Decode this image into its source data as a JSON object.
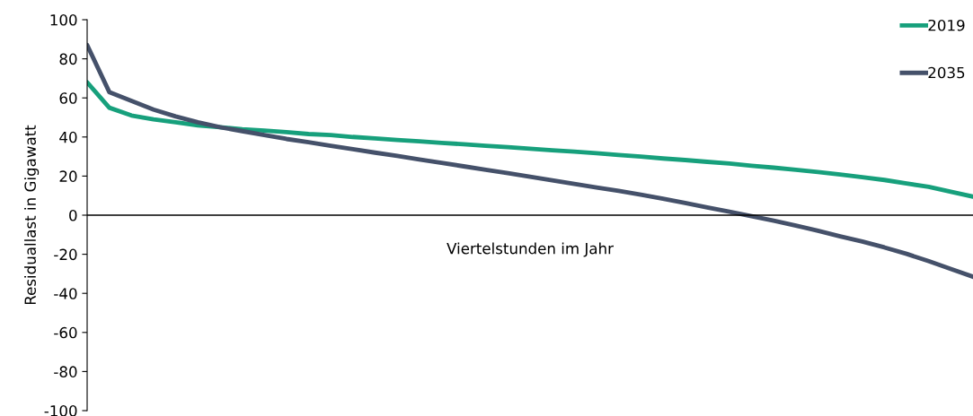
{
  "chart_data": {
    "type": "line",
    "xlabel": "Viertelstunden im Jahr",
    "ylabel": "Residuallast in Gigawatt",
    "categories": [
      null,
      null,
      null,
      null,
      null,
      null,
      null,
      null,
      null,
      null,
      null,
      null,
      null,
      null,
      null,
      null,
      null,
      null,
      null,
      null,
      null,
      null,
      null,
      null,
      null,
      null,
      null,
      null,
      null,
      null,
      null,
      null,
      null,
      null,
      null,
      null,
      null,
      null,
      null,
      null,
      null
    ],
    "series": [
      {
        "name": "2019",
        "color": "#17a07c",
        "values": [
          68,
          55,
          51,
          49,
          47.5,
          46,
          45,
          44,
          43.3,
          42.5,
          41.5,
          41,
          40,
          39.3,
          38.5,
          37.8,
          37,
          36.3,
          35.5,
          34.8,
          34,
          33.2,
          32.5,
          31.7,
          30.8,
          30,
          29,
          28.2,
          27.3,
          26.4,
          25.3,
          24.3,
          23.2,
          22.1,
          20.8,
          19.4,
          18,
          16.2,
          14.5,
          12,
          9.5
        ]
      },
      {
        "name": "2035",
        "color": "#45516a",
        "values": [
          87,
          63,
          58.5,
          54,
          50.5,
          47.5,
          45,
          43,
          41,
          39,
          37.3,
          35.5,
          33.8,
          32,
          30.3,
          28.5,
          26.8,
          25,
          23.2,
          21.5,
          19.7,
          17.8,
          16,
          14.2,
          12.4,
          10.5,
          8.4,
          6.2,
          4,
          1.8,
          -0.5,
          -2.8,
          -5.3,
          -8,
          -10.8,
          -13.5,
          -16.5,
          -19.8,
          -23.5,
          -27.5,
          -31.5
        ]
      }
    ],
    "ylim": [
      -100,
      100
    ],
    "yticks": [
      -100,
      -80,
      -60,
      -40,
      -20,
      0,
      20,
      40,
      60,
      80,
      100
    ],
    "ref_lines": [
      {
        "axis": "y",
        "value": 0,
        "color": "#000000"
      }
    ],
    "grid": false,
    "legend": "top right",
    "marker": "none",
    "line_style": "solid"
  }
}
